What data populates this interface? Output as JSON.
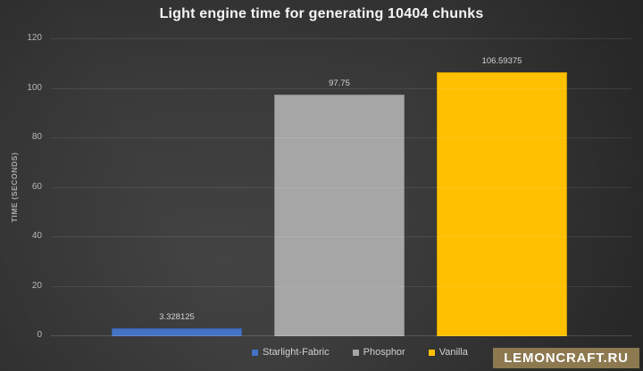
{
  "chart_data": {
    "type": "bar",
    "title": "Light engine time for generating 10404 chunks",
    "categories": [
      "Starlight-Fabric",
      "Phosphor",
      "Vanilla"
    ],
    "values": [
      3.328125,
      97.75,
      106.59375
    ],
    "value_labels": [
      "3.328125",
      "97.75",
      "106.59375"
    ],
    "bar_colors": [
      "#4472c4",
      "#a6a6a6",
      "#ffc000"
    ],
    "xlabel": "",
    "ylabel": "TIME (SECONDS)",
    "ylim": [
      0,
      120
    ],
    "yticks": [
      0,
      20,
      40,
      60,
      80,
      100,
      120
    ],
    "grid": true,
    "legend_position": "bottom"
  },
  "watermark": {
    "text": "LEMONCRAFT.RU",
    "background": "#8d7950",
    "text_color": "#ffffff"
  },
  "theme": {
    "background_style": "dark gray radial gradient",
    "title_color": "#f5f5f5",
    "tick_color": "#b8b8b8",
    "value_label_color": "#d4d4d4",
    "gridline_color": "rgba(255,255,255,0.09)"
  }
}
